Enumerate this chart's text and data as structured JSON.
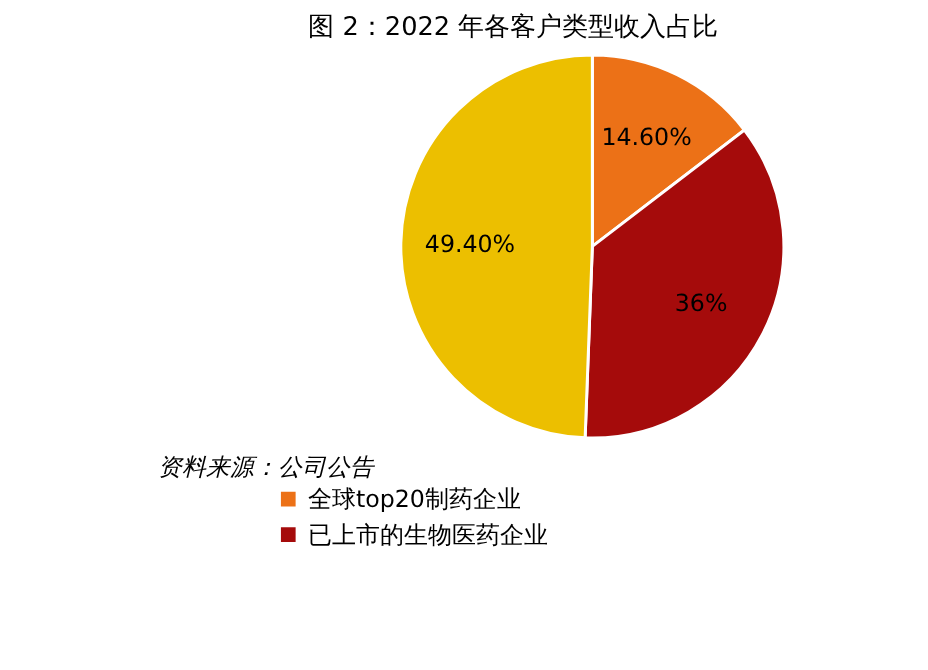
{
  "chart_data": {
    "type": "pie",
    "title": "图 2：2022 年各客户类型收入占比",
    "categories": [
      "全球top20制药企业",
      "已上市的生物医药企业",
      null
    ],
    "values": [
      14.6,
      36,
      49.4
    ],
    "colors": [
      "#ec7117",
      "#a50b0b",
      "#ecbf00"
    ],
    "value_labels": [
      "14.60%",
      "36%",
      "49.40%"
    ],
    "legend": "bottom",
    "annotations": [
      "资料来源：公司公告"
    ]
  }
}
